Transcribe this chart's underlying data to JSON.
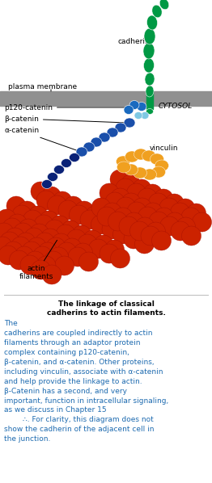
{
  "bg_color": "#ffffff",
  "membrane_color": "#909090",
  "cadherin_color": "#009944",
  "p120_color": "#1a6abf",
  "light_blue_color": "#7ec8e3",
  "beta_catenin_color": "#1a4faa",
  "alpha_catenin_color": "#0a2277",
  "vinculin_color": "#f0a020",
  "actin_color": "#cc2200",
  "text_color_blue": "#1e6bb0",
  "text_color_black": "#000000",
  "label_cadherin": "cadherin",
  "label_plasma": "plasma membrane",
  "label_cytosol": "CYTOSOL",
  "label_p120": "p120-catenin",
  "label_beta": "β-catenin",
  "label_alpha": "α-catenin",
  "label_vinculin": "vinculin",
  "label_actin": "actin\nfilaments",
  "caption_title": "The linkage of classical\ncadherins to actin filaments.",
  "caption_body": "The\ncadherins are coupled indirectly to actin\nfilaments through an adaptor protein\ncomplex containing p120-catenin,\nβ-catenin, and α-catenin. Other proteins,\nincluding vinculin, associate with α-catenin\nand help provide the linkage to actin.\nβ-Catenin has a second, and very\nimportant, function in intracellular signaling,\nas we discuss in Chapter 15\n        ∴. For clarity, this diagram does not\nshow the cadherin of the adjacent cell in\nthe junction."
}
